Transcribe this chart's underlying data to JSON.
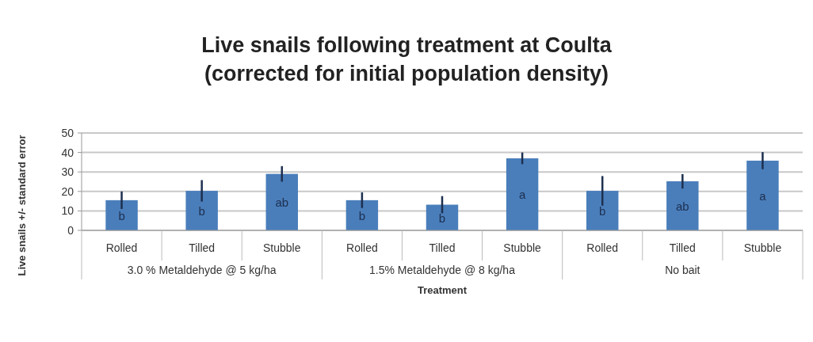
{
  "chart_data": {
    "type": "bar",
    "title": "Live snails following treatment at Coulta",
    "subtitle": "(corrected for initial population density)",
    "xlabel": "Treatment",
    "ylabel": "Live snails +/- standard error",
    "categories": [
      "Rolled",
      "Tilled",
      "Stubble",
      "Rolled",
      "Tilled",
      "Stubble",
      "Rolled",
      "Tilled",
      "Stubble"
    ],
    "values": [
      15.5,
      20.3,
      29,
      15.5,
      13.2,
      37,
      20.3,
      25.2,
      35.8
    ],
    "errors": [
      4.5,
      5.5,
      4,
      4,
      4.4,
      3,
      7.6,
      3.7,
      4.4
    ],
    "value_labels": [
      "b",
      "b",
      "ab",
      "b",
      "b",
      "a",
      "b",
      "ab",
      "a"
    ],
    "annotations": [
      "3.0 % Metaldehyde @ 5 kg/ha",
      "1.5% Metaldehyde @ 8 kg/ha",
      "No bait"
    ],
    "color": "#4a7ebb",
    "ylim": [
      0,
      50
    ],
    "yticks": [
      0,
      10,
      20,
      30,
      40,
      50
    ],
    "grid": "y"
  }
}
